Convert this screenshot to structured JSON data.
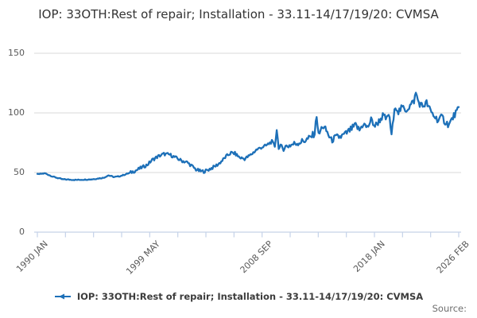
{
  "title": "IOP: 33OTH:Rest of repair; Installation - 33.11-14/17/19/20: CVMSA",
  "legend": {
    "label": "IOP: 33OTH:Rest of repair; Installation - 33.11-14/17/19/20: CVMSA"
  },
  "source_label": "Source:",
  "colors": {
    "line": "#1d70b8",
    "grid": "#d9d9d9",
    "axis": "#c5d2e8",
    "tick_label": "#595959",
    "title": "#333333"
  },
  "chart_data": {
    "type": "line",
    "title": "IOP: 33OTH:Rest of repair; Installation - 33.11-14/17/19/20: CVMSA",
    "xlabel": "",
    "ylabel": "",
    "ylim": [
      0,
      150
    ],
    "y_ticks": [
      0,
      50,
      100,
      150
    ],
    "grid": true,
    "legend_position": "bottom",
    "x_unit": "months since 1990 JAN",
    "x_months_total": 433,
    "n_x_ticks": 16,
    "labeled_tick_indices": [
      0,
      4,
      8,
      12,
      15
    ],
    "x_tick_labels": [
      "1990 JAN",
      "1999 MAY",
      "2008 SEP",
      "2018 JAN",
      "2026 FEB"
    ],
    "series_name": "IOP: 33OTH:Rest of repair; Installation - 33.11-14/17/19/20: CVMSA",
    "keypoints": [
      [
        0,
        48.5
      ],
      [
        8,
        49.3
      ],
      [
        16,
        46.5
      ],
      [
        26,
        44.3
      ],
      [
        40,
        43.8
      ],
      [
        56,
        44.3
      ],
      [
        68,
        45.6
      ],
      [
        73,
        47.6
      ],
      [
        79,
        46.2
      ],
      [
        84,
        46.8
      ],
      [
        90,
        48.3
      ],
      [
        96,
        50.0
      ],
      [
        102,
        52.0
      ],
      [
        108,
        54.5
      ],
      [
        113,
        56.5
      ],
      [
        118,
        60.5
      ],
      [
        124,
        63.5
      ],
      [
        130,
        65.5
      ],
      [
        136,
        65.0
      ],
      [
        142,
        62.5
      ],
      [
        148,
        60.0
      ],
      [
        154,
        58.5
      ],
      [
        158,
        56.0
      ],
      [
        163,
        52.5
      ],
      [
        168,
        51.0
      ],
      [
        172,
        51.0
      ],
      [
        176,
        52.5
      ],
      [
        181,
        54.5
      ],
      [
        186,
        57.0
      ],
      [
        190,
        60.0
      ],
      [
        194,
        63.5
      ],
      [
        199,
        66.5
      ],
      [
        203,
        66.0
      ],
      [
        208,
        62.5
      ],
      [
        213,
        61.5
      ],
      [
        217,
        63.5
      ],
      [
        221,
        66.0
      ],
      [
        225,
        69.0
      ],
      [
        230,
        71.0
      ],
      [
        235,
        72.5
      ],
      [
        241,
        76.0
      ],
      [
        244,
        72.0
      ],
      [
        246,
        86.0
      ],
      [
        248,
        71.0
      ],
      [
        252,
        70.5
      ],
      [
        256,
        72.0
      ],
      [
        262,
        73.5
      ],
      [
        268,
        75.0
      ],
      [
        274,
        76.5
      ],
      [
        280,
        79.0
      ],
      [
        285,
        83.0
      ],
      [
        287,
        98.5
      ],
      [
        289,
        81.0
      ],
      [
        293,
        89.0
      ],
      [
        297,
        85.0
      ],
      [
        302,
        77.0
      ],
      [
        307,
        79.5
      ],
      [
        312,
        80.0
      ],
      [
        317,
        82.5
      ],
      [
        322,
        86.0
      ],
      [
        327,
        89.5
      ],
      [
        331,
        85.5
      ],
      [
        335,
        91.0
      ],
      [
        339,
        87.5
      ],
      [
        343,
        94.0
      ],
      [
        347,
        89.0
      ],
      [
        351,
        93.0
      ],
      [
        355,
        97.5
      ],
      [
        359,
        94.5
      ],
      [
        361,
        99.5
      ],
      [
        364,
        82.5
      ],
      [
        368,
        106.5
      ],
      [
        371,
        101.0
      ],
      [
        375,
        104.5
      ],
      [
        379,
        102.5
      ],
      [
        383,
        106.0
      ],
      [
        387,
        110.0
      ],
      [
        389,
        116.5
      ],
      [
        392,
        108.5
      ],
      [
        396,
        105.5
      ],
      [
        400,
        108.5
      ],
      [
        404,
        101.5
      ],
      [
        408,
        97.0
      ],
      [
        412,
        94.0
      ],
      [
        416,
        96.5
      ],
      [
        419,
        92.5
      ],
      [
        423,
        90.0
      ],
      [
        426,
        94.5
      ],
      [
        429,
        99.0
      ],
      [
        433,
        103.0
      ]
    ]
  }
}
